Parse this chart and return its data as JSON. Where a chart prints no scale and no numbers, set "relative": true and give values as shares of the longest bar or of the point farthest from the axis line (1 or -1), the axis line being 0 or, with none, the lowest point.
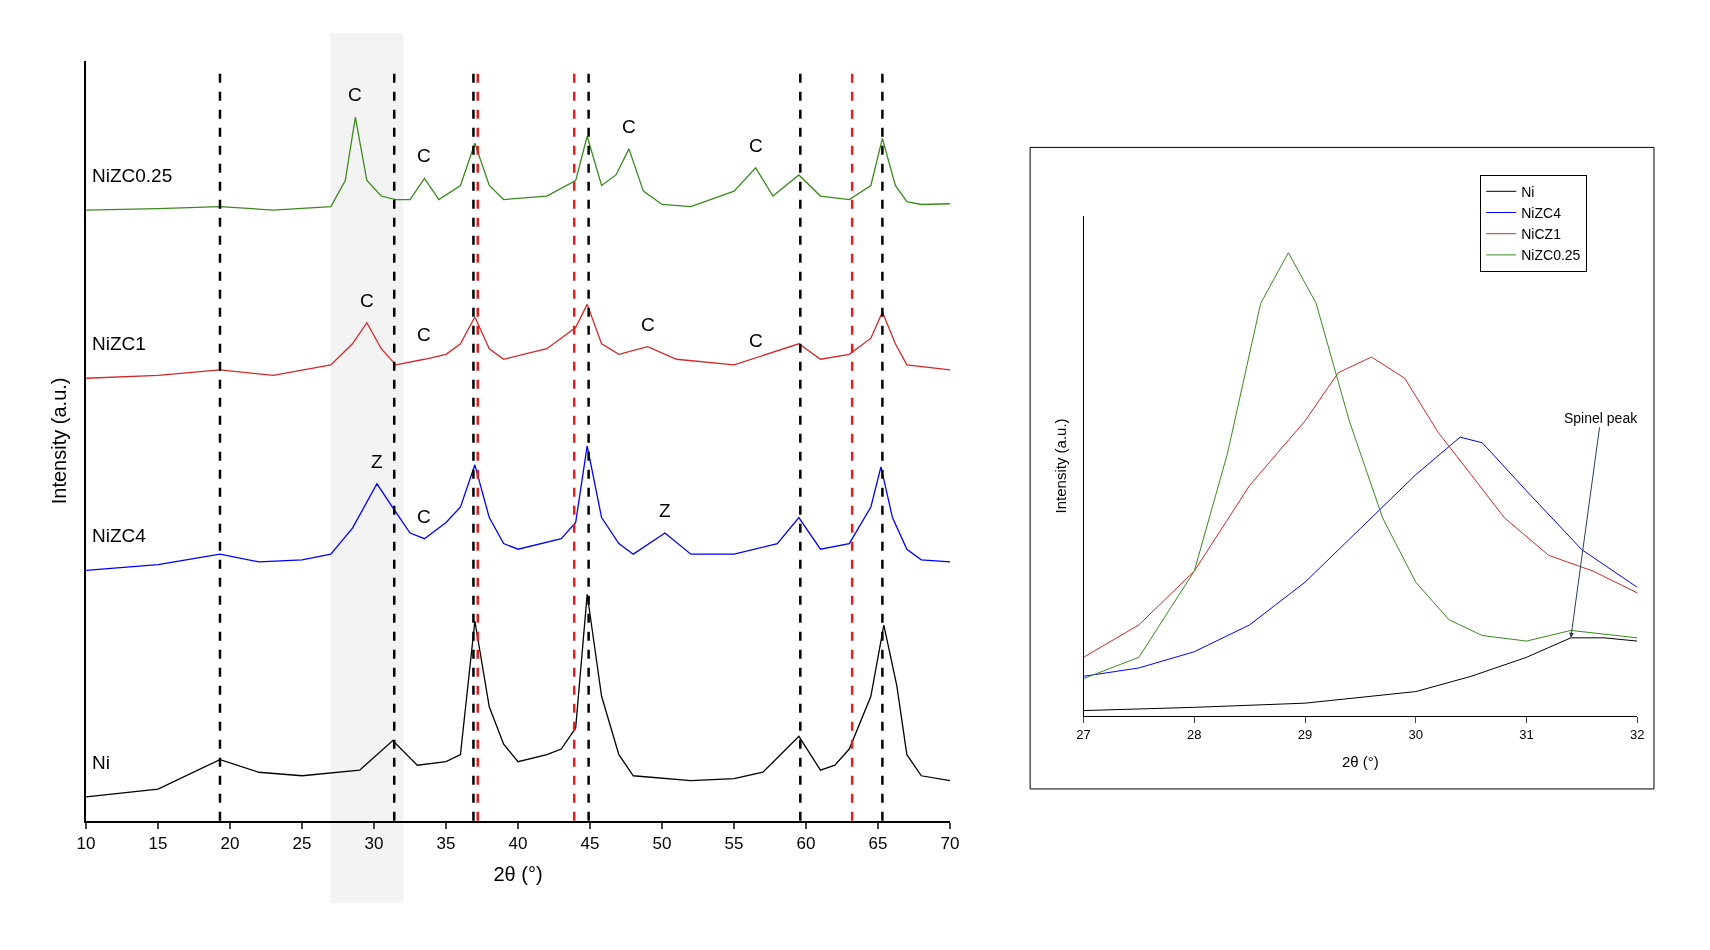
{
  "chart_data": [
    {
      "type": "line",
      "relative": true,
      "xlabel": "2θ (°)",
      "ylabel": "Intensity (a.u.)",
      "xlim": [
        10,
        70
      ],
      "xticks": [
        10,
        15,
        20,
        25,
        30,
        35,
        40,
        45,
        50,
        55,
        60,
        65,
        70
      ],
      "grid": false,
      "legend": false,
      "series": [
        {
          "name": "Ni",
          "color": "#000000",
          "x": [
            10,
            15,
            19.3,
            22,
            25,
            29,
            31.3,
            33,
            35,
            36,
            37,
            38,
            39,
            40,
            42,
            43,
            44,
            44.8,
            45.8,
            47,
            48,
            52,
            55,
            57,
            59.5,
            61,
            62,
            63,
            64.5,
            65.4,
            66.3,
            67,
            68,
            70
          ],
          "values": [
            0.034,
            0.045,
            0.087,
            0.069,
            0.064,
            0.072,
            0.114,
            0.079,
            0.084,
            0.094,
            0.284,
            0.162,
            0.109,
            0.084,
            0.094,
            0.102,
            0.132,
            0.322,
            0.177,
            0.094,
            0.064,
            0.057,
            0.06,
            0.069,
            0.12,
            0.072,
            0.079,
            0.102,
            0.177,
            0.278,
            0.192,
            0.094,
            0.064,
            0.057
          ]
        },
        {
          "name": "NiZC4",
          "color": "#0000ff",
          "x": [
            10,
            15,
            19.3,
            22,
            25,
            27,
            28.5,
            30.2,
            31.5,
            32.5,
            33.5,
            35,
            36,
            37,
            38,
            39,
            40,
            43,
            44,
            44.8,
            45.8,
            47,
            48,
            50.2,
            52,
            55,
            58,
            59.5,
            61,
            63,
            64.5,
            65.2,
            66,
            67,
            68,
            70
          ],
          "values": [
            0.356,
            0.364,
            0.379,
            0.368,
            0.371,
            0.379,
            0.416,
            0.479,
            0.439,
            0.409,
            0.401,
            0.424,
            0.446,
            0.506,
            0.431,
            0.394,
            0.386,
            0.401,
            0.424,
            0.533,
            0.431,
            0.394,
            0.379,
            0.409,
            0.379,
            0.379,
            0.394,
            0.431,
            0.386,
            0.394,
            0.446,
            0.503,
            0.431,
            0.386,
            0.371,
            0.368
          ]
        },
        {
          "name": "NiZC1",
          "color": "#d62728",
          "x": [
            10,
            15,
            19.3,
            23,
            27,
            28.5,
            29.5,
            30.5,
            31.5,
            33.5,
            35,
            36,
            37,
            38,
            39,
            42,
            44,
            44.8,
            45.8,
            47,
            49,
            51,
            55,
            59.5,
            61,
            63,
            64.5,
            65.3,
            66.2,
            67,
            70
          ],
          "values": [
            0.629,
            0.633,
            0.641,
            0.633,
            0.648,
            0.678,
            0.708,
            0.671,
            0.648,
            0.656,
            0.663,
            0.678,
            0.716,
            0.671,
            0.656,
            0.671,
            0.701,
            0.734,
            0.678,
            0.663,
            0.674,
            0.656,
            0.648,
            0.678,
            0.656,
            0.663,
            0.686,
            0.723,
            0.678,
            0.648,
            0.641
          ]
        },
        {
          "name": "NiZC0.25",
          "color": "#3a8a1e",
          "x": [
            10,
            15,
            19.3,
            23,
            27,
            28,
            28.7,
            29.5,
            30.5,
            31.5,
            32.5,
            33.5,
            34.5,
            36,
            37,
            38,
            39,
            42,
            44,
            44.8,
            45.8,
            46.8,
            47.7,
            48.7,
            50,
            52,
            55,
            56.5,
            57.7,
            59.5,
            61,
            63,
            64.5,
            65.3,
            66.2,
            67,
            68,
            70
          ],
          "values": [
            0.868,
            0.87,
            0.873,
            0.868,
            0.873,
            0.91,
            1.0,
            0.91,
            0.888,
            0.883,
            0.883,
            0.913,
            0.883,
            0.903,
            0.963,
            0.903,
            0.883,
            0.888,
            0.91,
            0.973,
            0.903,
            0.918,
            0.955,
            0.895,
            0.876,
            0.873,
            0.895,
            0.928,
            0.888,
            0.918,
            0.888,
            0.883,
            0.903,
            0.97,
            0.903,
            0.88,
            0.876,
            0.877
          ]
        }
      ],
      "ref_lines": [
        {
          "axis": "x",
          "value": 19.3,
          "color": "#000000",
          "line_style": "dashed"
        },
        {
          "axis": "x",
          "value": 31.4,
          "color": "#000000",
          "line_style": "dashed"
        },
        {
          "axis": "x",
          "value": 36.9,
          "color": "#000000",
          "line_style": "dashed"
        },
        {
          "axis": "x",
          "value": 44.9,
          "color": "#000000",
          "line_style": "dashed"
        },
        {
          "axis": "x",
          "value": 59.6,
          "color": "#000000",
          "line_style": "dashed"
        },
        {
          "axis": "x",
          "value": 65.3,
          "color": "#000000",
          "line_style": "dashed"
        },
        {
          "axis": "x",
          "value": 37.2,
          "color": "#e02020",
          "line_style": "dashed"
        },
        {
          "axis": "x",
          "value": 43.9,
          "color": "#e02020",
          "line_style": "dashed"
        },
        {
          "axis": "x",
          "value": 63.2,
          "color": "#e02020",
          "line_style": "dashed"
        }
      ],
      "bands": [
        {
          "axis": "x",
          "from": 27,
          "to": 32,
          "color": "#404040"
        }
      ],
      "annotations": [
        {
          "text": "C",
          "x": 28.7,
          "y": 1.0
        },
        {
          "text": "C",
          "x": 33.5,
          "y": 0.913
        },
        {
          "text": "C",
          "x": 47.7,
          "y": 0.955
        },
        {
          "text": "C",
          "x": 56.5,
          "y": 0.928
        },
        {
          "text": "C",
          "x": 29.5,
          "y": 0.708
        },
        {
          "text": "C",
          "x": 33.5,
          "y": 0.659
        },
        {
          "text": "C",
          "x": 49,
          "y": 0.674
        },
        {
          "text": "C",
          "x": 56.5,
          "y": 0.651
        },
        {
          "text": "Z",
          "x": 30.2,
          "y": 0.479
        },
        {
          "text": "C",
          "x": 33.5,
          "y": 0.401
        },
        {
          "text": "Z",
          "x": 50.2,
          "y": 0.409
        }
      ]
    },
    {
      "type": "line",
      "relative": true,
      "xlabel": "2θ (°)",
      "ylabel": "Intensity (a.u.)",
      "xlim": [
        27,
        32
      ],
      "xticks": [
        27,
        28,
        29,
        30,
        31,
        32
      ],
      "grid": false,
      "legend": "top right",
      "series": [
        {
          "name": "Ni",
          "color": "#000000",
          "x": [
            27,
            28,
            29,
            30,
            30.5,
            31,
            31.4,
            31.7,
            32
          ],
          "values": [
            0.012,
            0.019,
            0.028,
            0.053,
            0.086,
            0.127,
            0.169,
            0.169,
            0.162
          ]
        },
        {
          "name": "NiZC4",
          "color": "#0000ff",
          "x": [
            27,
            27.5,
            28,
            28.5,
            29,
            29.5,
            30,
            30.4,
            30.6,
            31,
            31.5,
            32
          ],
          "values": [
            0.086,
            0.104,
            0.139,
            0.197,
            0.289,
            0.405,
            0.521,
            0.602,
            0.59,
            0.486,
            0.359,
            0.278
          ]
        },
        {
          "name": "NiCZ1",
          "color": "#d62728",
          "x": [
            27,
            27.5,
            28,
            28.5,
            29,
            29.3,
            29.6,
            29.9,
            30.2,
            30.5,
            30.8,
            31.2,
            31.6,
            32
          ],
          "values": [
            0.127,
            0.197,
            0.313,
            0.498,
            0.637,
            0.741,
            0.775,
            0.729,
            0.613,
            0.521,
            0.428,
            0.347,
            0.313,
            0.266
          ]
        },
        {
          "name": "NiZC0.25",
          "color": "#3a8a1e",
          "x": [
            27,
            27.5,
            28,
            28.3,
            28.6,
            28.85,
            29.1,
            29.4,
            29.7,
            30,
            30.3,
            30.6,
            31,
            31.4,
            32
          ],
          "values": [
            0.081,
            0.127,
            0.313,
            0.567,
            0.891,
            1.0,
            0.891,
            0.637,
            0.428,
            0.289,
            0.208,
            0.174,
            0.162,
            0.185,
            0.169
          ]
        }
      ],
      "annotations": [
        {
          "text": "Spinel peak",
          "x": 31.4,
          "y": 0.169
        }
      ]
    }
  ]
}
